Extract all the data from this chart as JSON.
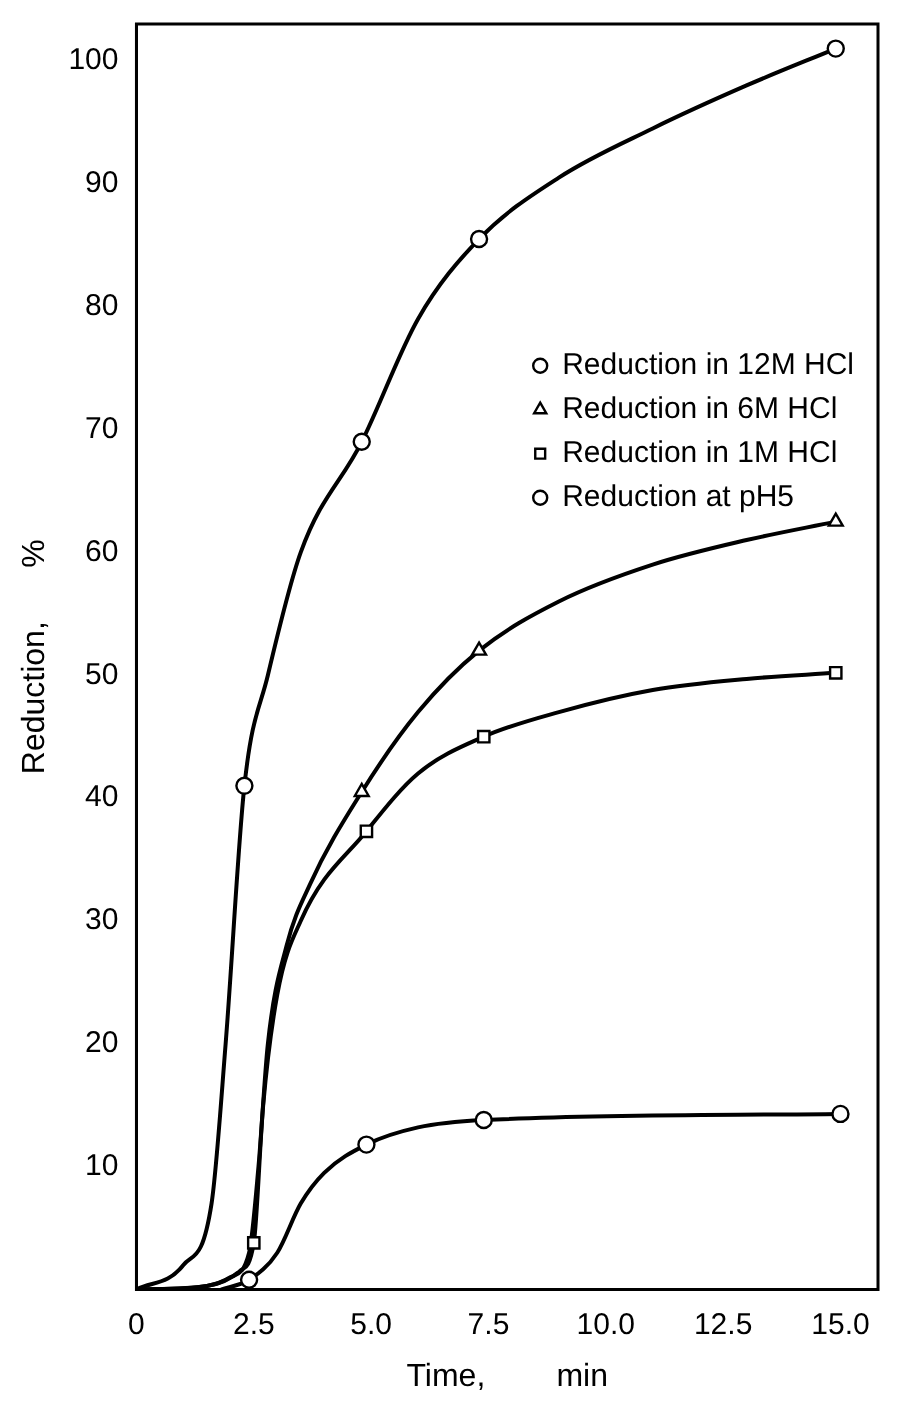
{
  "chart_data": {
    "type": "scatter",
    "xlabel": "Time,        min",
    "ylabel": "Reduction,      %",
    "xlim": [
      0,
      15.8
    ],
    "ylim": [
      0,
      103
    ],
    "xticks": [
      0,
      2.5,
      {
        "value": 5,
        "label": "5.0"
      },
      7.5,
      {
        "value": 10,
        "label": "10.0"
      },
      12.5,
      {
        "value": 15,
        "label": "15.0"
      }
    ],
    "yticks": [
      10,
      20,
      30,
      40,
      50,
      60,
      70,
      80,
      90,
      100
    ],
    "grid": false,
    "legend": "right",
    "series": [
      {
        "name": "Reduction in 12M HCl",
        "type": "scatter",
        "marker": "circle",
        "color": "#000000",
        "x": [
          2.3,
          4.8,
          7.3,
          14.9
        ],
        "values": [
          41,
          69,
          85.5,
          101
        ]
      },
      {
        "name": "Reduction in 6M HCl",
        "type": "scatter",
        "marker": "triangle",
        "color": "#000000",
        "x": [
          4.8,
          7.3,
          14.9
        ],
        "values": [
          40.5,
          52,
          62.5
        ]
      },
      {
        "name": "Reduction in 1M HCl",
        "type": "scatter",
        "marker": "square",
        "color": "#000000",
        "x": [
          2.5,
          4.9,
          7.4,
          14.9
        ],
        "values": [
          3.8,
          37.3,
          45,
          50.2
        ]
      },
      {
        "name": "Reduction at pH5",
        "type": "scatter",
        "marker": "circle",
        "color": "#000000",
        "x": [
          2.4,
          4.9,
          7.4,
          15
        ],
        "values": [
          0.8,
          11.8,
          13.8,
          14.3
        ]
      },
      {
        "type": "line",
        "marker": "none",
        "color": "#000000",
        "x": [
          0,
          1,
          1.6,
          1.9,
          2.3,
          2.8,
          3.5,
          4.8,
          6,
          7.3,
          9,
          11,
          13,
          14.9
        ],
        "values": [
          0,
          2,
          7,
          20,
          41,
          50,
          60,
          69,
          79,
          85.5,
          90.5,
          94.5,
          98,
          101
        ]
      },
      {
        "type": "line",
        "marker": "none",
        "color": "#000000",
        "x": [
          0,
          1.5,
          2,
          2.4,
          2.6,
          2.8,
          3.2,
          3.7,
          4.8,
          6,
          7.3,
          9,
          11,
          13,
          14.9
        ],
        "values": [
          0,
          0.3,
          1,
          3,
          10,
          20,
          28,
          33,
          40.5,
          47,
          52,
          56,
          59,
          61,
          62.5
        ]
      },
      {
        "type": "line",
        "marker": "none",
        "color": "#000000",
        "x": [
          0,
          1.5,
          2.2,
          2.5,
          2.7,
          3,
          3.5,
          4.9,
          6,
          7.4,
          9,
          11,
          13,
          14.9
        ],
        "values": [
          0,
          0.3,
          1.5,
          3.8,
          15,
          24,
          30,
          37.3,
          42,
          45,
          47,
          48.8,
          49.7,
          50.2
        ]
      },
      {
        "type": "line",
        "marker": "none",
        "color": "#000000",
        "x": [
          1.8,
          2.4,
          3,
          3.5,
          4,
          4.9,
          6,
          7.4,
          15
        ],
        "values": [
          0,
          0.8,
          3,
          7,
          9.5,
          11.8,
          13.2,
          13.8,
          14.3
        ]
      }
    ]
  }
}
